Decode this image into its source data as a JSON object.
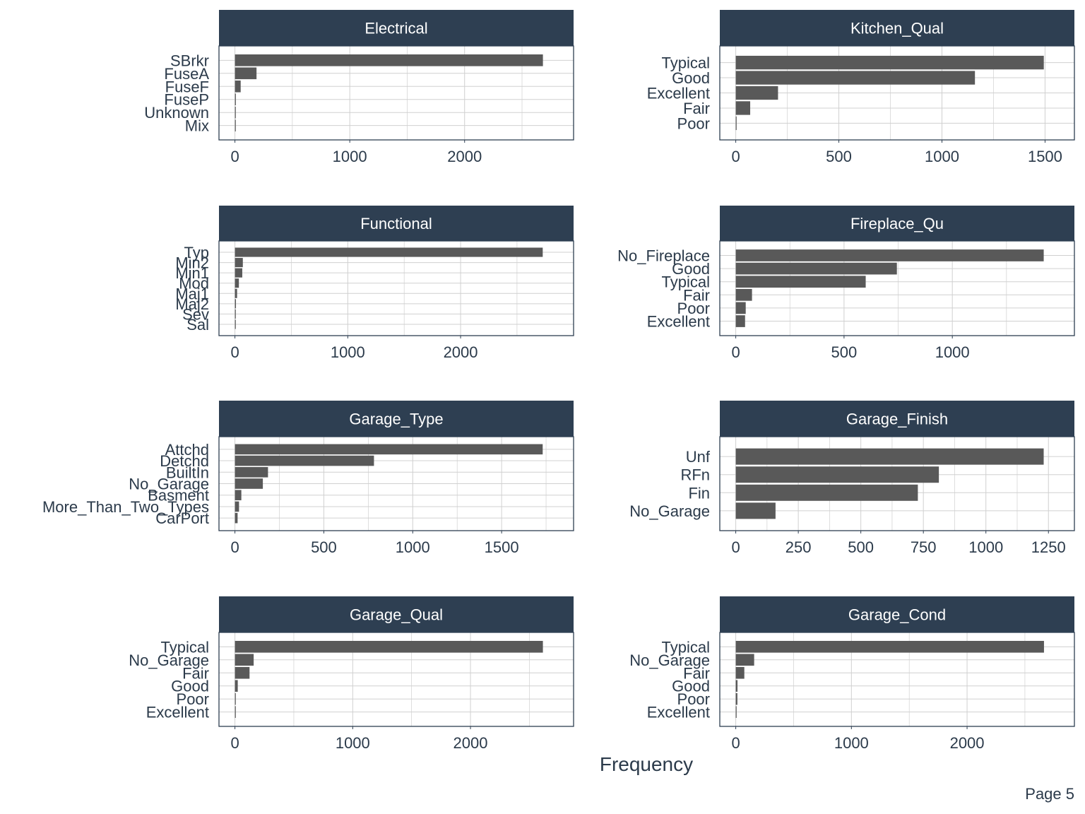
{
  "x_axis_label": "Frequency",
  "page_label": "Page 5",
  "colors": {
    "bar": "#595959",
    "strip": "#2e3f52",
    "grid": "#d0d0d0",
    "panel_border": "#2e3f52",
    "text": "#2b3a4a"
  },
  "chart_data": [
    {
      "type": "bar",
      "orientation": "horizontal",
      "title": "Electrical",
      "categories": [
        "SBrkr",
        "FuseA",
        "FuseF",
        "FuseP",
        "Unknown",
        "Mix"
      ],
      "values": [
        2682,
        188,
        50,
        8,
        1,
        1
      ],
      "xlim": [
        0,
        2810
      ],
      "xticks": [
        0,
        1000,
        2000
      ],
      "grid": true
    },
    {
      "type": "bar",
      "orientation": "horizontal",
      "title": "Kitchen_Qual",
      "categories": [
        "Typical",
        "Good",
        "Excellent",
        "Fair",
        "Poor"
      ],
      "values": [
        1494,
        1160,
        205,
        70,
        1
      ],
      "xlim": [
        0,
        1565
      ],
      "xticks": [
        0,
        500,
        1000,
        1500
      ],
      "grid": true
    },
    {
      "type": "bar",
      "orientation": "horizontal",
      "title": "Functional",
      "categories": [
        "Typ",
        "Min2",
        "Min1",
        "Mod",
        "Maj1",
        "Maj2",
        "Sev",
        "Sal"
      ],
      "values": [
        2728,
        70,
        65,
        35,
        19,
        9,
        2,
        2
      ],
      "xlim": [
        0,
        2860
      ],
      "xticks": [
        0,
        1000,
        2000
      ],
      "grid": true
    },
    {
      "type": "bar",
      "orientation": "horizontal",
      "title": "Fireplace_Qu",
      "categories": [
        "No_Fireplace",
        "Good",
        "Typical",
        "Fair",
        "Poor",
        "Excellent"
      ],
      "values": [
        1422,
        744,
        600,
        75,
        46,
        43
      ],
      "xlim": [
        0,
        1490
      ],
      "xticks": [
        0,
        500,
        1000
      ],
      "grid": true
    },
    {
      "type": "bar",
      "orientation": "horizontal",
      "title": "Garage_Type",
      "categories": [
        "Attchd",
        "Detchd",
        "BuiltIn",
        "No_Garage",
        "Basment",
        "More_Than_Two_Types",
        "CarPort"
      ],
      "values": [
        1731,
        782,
        186,
        157,
        36,
        23,
        15
      ],
      "xlim": [
        0,
        1815
      ],
      "xticks": [
        0,
        500,
        1000,
        1500
      ],
      "grid": true
    },
    {
      "type": "bar",
      "orientation": "horizontal",
      "title": "Garage_Finish",
      "categories": [
        "Unf",
        "RFn",
        "Fin",
        "No_Garage"
      ],
      "values": [
        1231,
        812,
        728,
        159
      ],
      "xlim": [
        0,
        1290
      ],
      "xticks": [
        0,
        250,
        500,
        750,
        1000,
        1250
      ],
      "grid": true
    },
    {
      "type": "bar",
      "orientation": "horizontal",
      "title": "Garage_Qual",
      "categories": [
        "Typical",
        "No_Garage",
        "Fair",
        "Good",
        "Poor",
        "Excellent"
      ],
      "values": [
        2615,
        159,
        124,
        24,
        5,
        3
      ],
      "xlim": [
        0,
        2740
      ],
      "xticks": [
        0,
        1000,
        2000
      ],
      "grid": true
    },
    {
      "type": "bar",
      "orientation": "horizontal",
      "title": "Garage_Cond",
      "categories": [
        "Typical",
        "No_Garage",
        "Fair",
        "Good",
        "Poor",
        "Excellent"
      ],
      "values": [
        2665,
        159,
        74,
        15,
        14,
        3
      ],
      "xlim": [
        0,
        2790
      ],
      "xticks": [
        0,
        1000,
        2000
      ],
      "grid": true
    }
  ]
}
